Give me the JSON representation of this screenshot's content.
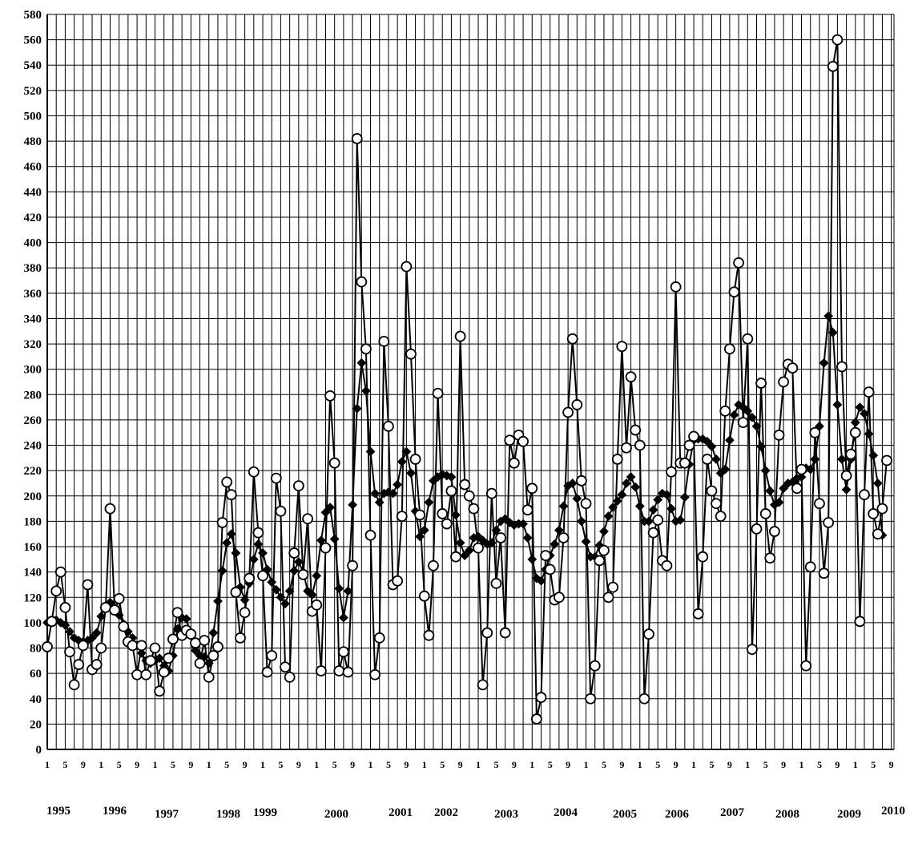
{
  "chart_data": {
    "type": "line",
    "title": "",
    "xlabel": "",
    "ylabel": "",
    "ylim": [
      0,
      580
    ],
    "y_ticks": [
      0,
      20,
      40,
      60,
      80,
      100,
      120,
      140,
      160,
      180,
      200,
      220,
      240,
      260,
      280,
      300,
      320,
      340,
      360,
      380,
      400,
      420,
      440,
      460,
      480,
      500,
      520,
      540,
      560,
      580
    ],
    "x_month_ticks": [
      "1",
      "5",
      "9",
      "1",
      "5",
      "9",
      "1",
      "5",
      "9",
      "1",
      "5",
      "9",
      "1",
      "5",
      "9",
      "1",
      "5",
      "9",
      "1",
      "5",
      "9",
      "1",
      "5",
      "9",
      "1",
      "5",
      "9",
      "1",
      "5",
      "9",
      "1",
      "5",
      "9",
      "1",
      "5",
      "9",
      "1",
      "5",
      "9",
      "1",
      "5",
      "9",
      "1",
      "5",
      "9",
      "1",
      "5",
      "9"
    ],
    "years": [
      "1995",
      "1996",
      "1997",
      "1998",
      "1999",
      "2000",
      "2001",
      "2002",
      "2003",
      "2004",
      "2005",
      "2006",
      "2007",
      "2008",
      "2009",
      "2010"
    ],
    "grid": true,
    "legend": "none",
    "series": [
      {
        "marker": "open-circle",
        "color": "#000000",
        "values": [
          81,
          101,
          125,
          140,
          112,
          77,
          51,
          67,
          82,
          130,
          63,
          67,
          80,
          112,
          190,
          110,
          119,
          97,
          85,
          82,
          59,
          82,
          59,
          70,
          80,
          46,
          61,
          72,
          87,
          108,
          90,
          94,
          91,
          84,
          68,
          86,
          57,
          74,
          81,
          179,
          211,
          201,
          124,
          88,
          108,
          135,
          219,
          171,
          137,
          61,
          74,
          214,
          188,
          65,
          57,
          155,
          208,
          138,
          182,
          109,
          114,
          62,
          159,
          279,
          226,
          62,
          77,
          61,
          145,
          482,
          369,
          316,
          169,
          59,
          88,
          322,
          255,
          130,
          133,
          184,
          381,
          312,
          229,
          185,
          121,
          90,
          145,
          281,
          186,
          178,
          204,
          152,
          326,
          209,
          200,
          190,
          159,
          51,
          92,
          202,
          131,
          167,
          92,
          244,
          226,
          248,
          243,
          189,
          206,
          24,
          41,
          153,
          142,
          118,
          120,
          167,
          266,
          324,
          272,
          212,
          194,
          40,
          66,
          149,
          157,
          120,
          128,
          229,
          318,
          238,
          294,
          252,
          240,
          40,
          91,
          171,
          181,
          149,
          145,
          219,
          365,
          226,
          226,
          240,
          247,
          107,
          152,
          229,
          204,
          194,
          184,
          267,
          316,
          361,
          384,
          258,
          324,
          79,
          174,
          289,
          186,
          151,
          172,
          248,
          290,
          304,
          301,
          206,
          221,
          66,
          144,
          250,
          194,
          139,
          179,
          539,
          560,
          302,
          216,
          233,
          250,
          101,
          201,
          282,
          186,
          170,
          190,
          228
        ]
      },
      {
        "marker": "filled-diamond",
        "color": "#000000",
        "values": [
          100,
          101,
          102,
          100,
          98,
          93,
          88,
          86,
          85,
          86,
          88,
          92,
          105,
          113,
          116,
          112,
          106,
          99,
          93,
          88,
          82,
          76,
          70,
          68,
          70,
          72,
          66,
          62,
          74,
          95,
          104,
          103,
          90,
          78,
          74,
          73,
          68,
          92,
          117,
          141,
          163,
          170,
          155,
          128,
          118,
          131,
          150,
          162,
          155,
          142,
          132,
          126,
          120,
          115,
          125,
          141,
          148,
          140,
          125,
          122,
          137,
          165,
          187,
          191,
          166,
          127,
          104,
          125,
          193,
          269,
          305,
          283,
          235,
          202,
          195,
          202,
          203,
          202,
          209,
          227,
          235,
          218,
          188,
          168,
          173,
          195,
          212,
          215,
          217,
          216,
          215,
          185,
          163,
          153,
          157,
          167,
          168,
          165,
          162,
          163,
          173,
          180,
          182,
          179,
          177,
          178,
          178,
          167,
          150,
          135,
          133,
          142,
          153,
          162,
          173,
          192,
          208,
          210,
          198,
          180,
          164,
          152,
          152,
          161,
          172,
          184,
          191,
          196,
          201,
          210,
          215,
          207,
          192,
          180,
          180,
          189,
          197,
          202,
          201,
          190,
          180,
          181,
          199,
          225,
          244,
          245,
          245,
          243,
          239,
          229,
          218,
          221,
          244,
          264,
          272,
          270,
          267,
          262,
          255,
          239,
          220,
          204,
          193,
          195,
          206,
          210,
          211,
          214,
          215,
          222,
          221,
          229,
          255,
          305,
          342,
          329,
          272,
          229,
          205,
          229,
          258,
          270,
          265,
          249,
          232,
          210,
          169
        ]
      }
    ]
  }
}
